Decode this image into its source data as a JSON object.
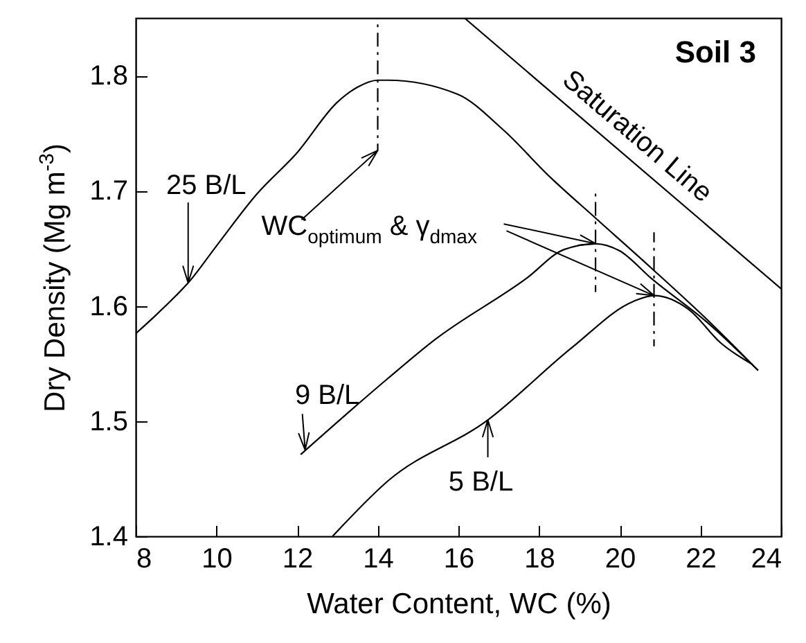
{
  "chart_data": {
    "type": "line",
    "title": "Soil 3",
    "xlabel": "Water Content, WC (%)",
    "ylabel": "Dry Density (Mg m$^{-3}$)",
    "xlim": [
      8,
      24
    ],
    "ylim": [
      1.4,
      1.85
    ],
    "xticks": [
      8,
      10,
      12,
      14,
      16,
      18,
      20,
      22,
      24
    ],
    "yticks": [
      1.4,
      1.5,
      1.6,
      1.7,
      1.8
    ],
    "series": [
      {
        "color": "#000000",
        "x": [
          8,
          8.5,
          9,
          9.3,
          10,
          11,
          12,
          13,
          13.5,
          14,
          14.25,
          15.97,
          17.11,
          18.27,
          19.41,
          20.78,
          22.26,
          23.43
        ],
        "values": [
          1.576,
          1.592,
          1.609,
          1.62,
          1.652,
          1.697,
          1.733,
          1.777,
          1.79,
          1.796,
          1.796,
          1.784,
          1.753,
          1.712,
          1.676,
          1.633,
          1.585,
          1.544
        ]
      },
      {
        "color": "#000000",
        "x": [
          12.09,
          14.25,
          15.39,
          17.69,
          18.62,
          19.41,
          19.99,
          20.78,
          22.26,
          23.43
        ],
        "values": [
          1.471,
          1.537,
          1.57,
          1.624,
          1.649,
          1.654,
          1.648,
          1.624,
          1.583,
          1.544
        ]
      },
      {
        "color": "#000000",
        "x": [
          12.88,
          14.25,
          16.73,
          18.82,
          20.34,
          20.85,
          21.71,
          22.5,
          23.3
        ],
        "values": [
          1.4,
          1.448,
          1.501,
          1.564,
          1.604,
          1.609,
          1.597,
          1.568,
          1.549
        ]
      },
      {
        "name": "Saturation Line",
        "color": "#000000",
        "x": [
          16.15,
          24
        ],
        "values": [
          1.85,
          1.615
        ]
      },
      {
        "color": "#000000",
        "line_style": "dashed",
        "x": [
          14,
          14
        ],
        "values": [
          1.85,
          1.735
        ]
      },
      {
        "color": "#000000",
        "line_style": "dashed",
        "x": [
          19.4,
          19.4
        ],
        "values": [
          1.7,
          1.612
        ]
      },
      {
        "color": "#000000",
        "line_style": "dashed",
        "x": [
          20.85,
          20.85
        ],
        "values": [
          1.664,
          1.565
        ]
      }
    ],
    "annotations": [
      {
        "text": "25 B/L",
        "x": 9.3,
        "y": 1.62
      },
      {
        "text": "9 B/L",
        "x": 12.2,
        "y": 1.475
      },
      {
        "text": "5 B/L",
        "x": 16.73,
        "y": 1.501
      },
      {
        "text": "WC$_{optimum}$ & γ$_{dmax}$",
        "x": 14,
        "y": 1.735
      }
    ]
  }
}
